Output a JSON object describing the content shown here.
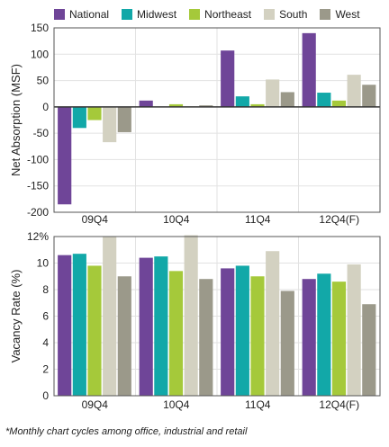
{
  "legend": [
    "National",
    "Midwest",
    "Northeast",
    "South",
    "West"
  ],
  "colors": {
    "National": "#6f4598",
    "Midwest": "#12a8a8",
    "Northeast": "#a5c93a",
    "South": "#d3d1c1",
    "West": "#9b998a"
  },
  "footnote": "*Monthly chart cycles among office, industrial and retail",
  "chart_data": [
    {
      "type": "bar",
      "categories": [
        "09Q4",
        "10Q4",
        "11Q4",
        "12Q4(F)"
      ],
      "ylabel": "Net Absorption (MSF)",
      "ylim": [
        -200,
        150
      ],
      "yticks": [
        -200,
        -150,
        -100,
        -50,
        0,
        50,
        100,
        150
      ],
      "ytick_labels": [
        "-200",
        "-150",
        "-100",
        "-50",
        "0",
        "50",
        "100",
        "150"
      ],
      "series": [
        {
          "name": "National",
          "values": [
            -185,
            12,
            107,
            140
          ]
        },
        {
          "name": "Midwest",
          "values": [
            -40,
            0,
            20,
            27
          ]
        },
        {
          "name": "Northeast",
          "values": [
            -25,
            5,
            5,
            12
          ]
        },
        {
          "name": "South",
          "values": [
            -67,
            1,
            52,
            61
          ]
        },
        {
          "name": "West",
          "values": [
            -48,
            3,
            28,
            42
          ]
        }
      ]
    },
    {
      "type": "bar",
      "categories": [
        "09Q4",
        "10Q4",
        "11Q4",
        "12Q4(F)"
      ],
      "ylabel": "Vacancy Rate (%)",
      "ylim": [
        0,
        12
      ],
      "yticks": [
        0,
        2,
        4,
        6,
        8,
        10,
        12
      ],
      "ytick_labels": [
        "0",
        "2",
        "4",
        "6",
        "8",
        "10",
        "12%"
      ],
      "series": [
        {
          "name": "National",
          "values": [
            10.6,
            10.4,
            9.6,
            8.8
          ]
        },
        {
          "name": "Midwest",
          "values": [
            10.7,
            10.5,
            9.8,
            9.2
          ]
        },
        {
          "name": "Northeast",
          "values": [
            9.8,
            9.4,
            9.0,
            8.6
          ]
        },
        {
          "name": "South",
          "values": [
            12.0,
            12.1,
            10.9,
            9.9
          ]
        },
        {
          "name": "West",
          "values": [
            9.0,
            8.8,
            7.9,
            6.9
          ]
        }
      ]
    }
  ]
}
